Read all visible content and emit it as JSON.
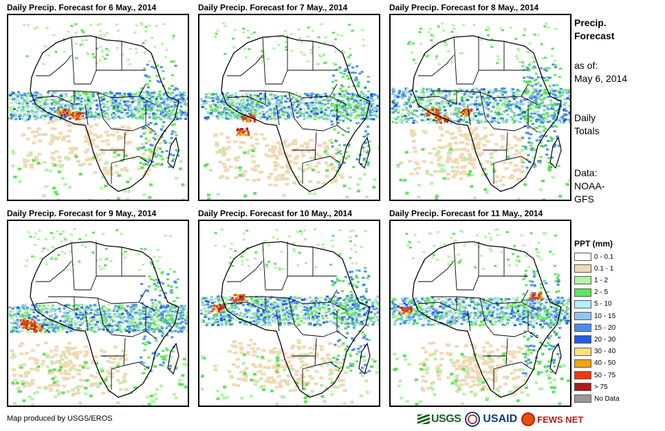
{
  "panels": [
    {
      "title": "Daily Precip. Forecast for 6 May., 2014",
      "scene": "p1"
    },
    {
      "title": "Daily Precip. Forecast for 7 May., 2014",
      "scene": "p2"
    },
    {
      "title": "Daily Precip. Forecast for 8 May., 2014",
      "scene": "p3"
    },
    {
      "title": "Daily Precip. Forecast for 9 May., 2014",
      "scene": "p4"
    },
    {
      "title": "Daily Precip. Forecast for 10 May., 2014",
      "scene": "p5"
    },
    {
      "title": "Daily Precip. Forecast for 11 May., 2014",
      "scene": "p6"
    }
  ],
  "side": {
    "heading_line1": "Precip.",
    "heading_line2": "Forecast",
    "asof_label": "as of:",
    "asof_date": "May 6, 2014",
    "totals_line1": "Daily",
    "totals_line2": "Totals",
    "data_line1": "Data:",
    "data_line2": "NOAA-",
    "data_line3": "GFS"
  },
  "legend": {
    "title": "PPT (mm)",
    "items": [
      {
        "label": "0 - 0.1",
        "color": "#ffffff"
      },
      {
        "label": "0.1 - 1",
        "color": "#f0d9b5"
      },
      {
        "label": "1 - 2",
        "color": "#b7f0a8"
      },
      {
        "label": "2 - 5",
        "color": "#5fe45c"
      },
      {
        "label": "5 - 10",
        "color": "#b3eefb"
      },
      {
        "label": "10 - 15",
        "color": "#8fc6f2"
      },
      {
        "label": "15 - 20",
        "color": "#4c8ef0"
      },
      {
        "label": "20 - 30",
        "color": "#1f5de0"
      },
      {
        "label": "30 - 40",
        "color": "#f8e27a"
      },
      {
        "label": "40 - 50",
        "color": "#f5a40b"
      },
      {
        "label": "50 - 75",
        "color": "#ee3a0c"
      },
      {
        "label": "> 75",
        "color": "#a51f1f"
      },
      {
        "label": "No Data",
        "color": "#999999"
      }
    ]
  },
  "credit": "Map produced by USGS/EROS",
  "logos": {
    "usgs": "USGS",
    "usaid": "USAID",
    "fews": "FEWS NET"
  }
}
